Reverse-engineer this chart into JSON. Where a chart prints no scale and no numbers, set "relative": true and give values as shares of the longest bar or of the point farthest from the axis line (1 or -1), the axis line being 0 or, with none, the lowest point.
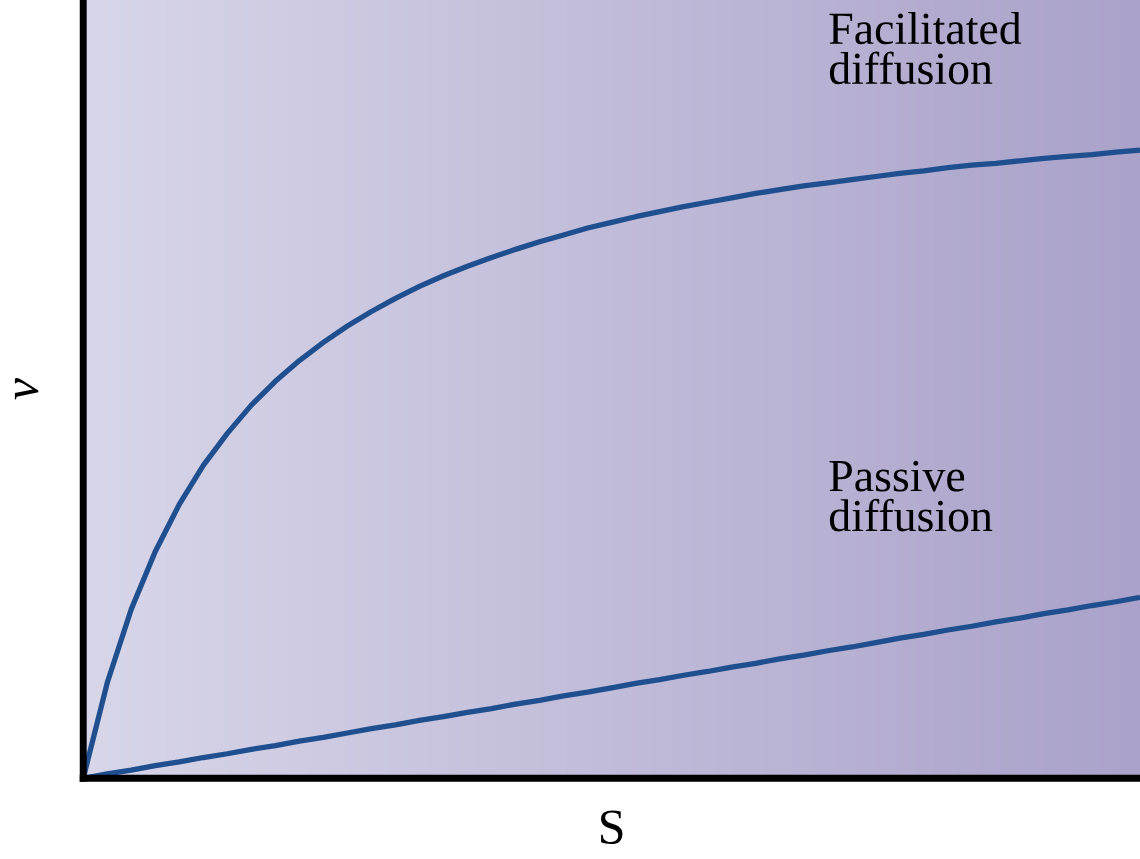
{
  "chart_data": {
    "type": "line",
    "relative": true,
    "xlabel": "S",
    "ylabel": "v",
    "tick_labels": false,
    "grid": false,
    "legend": false,
    "marker": "none",
    "line_style": "solid",
    "categories": [
      null,
      null,
      null,
      null,
      null,
      null,
      null,
      null,
      null,
      null,
      null,
      null,
      null,
      null,
      null,
      null,
      null,
      null,
      null,
      null,
      null,
      null,
      null,
      null,
      null,
      null,
      null,
      null,
      null,
      null,
      null,
      null,
      null,
      null,
      null,
      null,
      null,
      null,
      null,
      null,
      null,
      null,
      null,
      null,
      null
    ],
    "series": [
      {
        "name": "Facilitated diffusion",
        "color": "#1f4f8f",
        "values": [
          0,
          0.152,
          0.269,
          0.361,
          0.436,
          0.498,
          0.549,
          0.594,
          0.632,
          0.665,
          0.694,
          0.72,
          0.743,
          0.764,
          0.783,
          0.8,
          0.815,
          0.829,
          0.842,
          0.854,
          0.865,
          0.876,
          0.885,
          0.894,
          0.902,
          0.91,
          0.917,
          0.924,
          0.931,
          0.937,
          0.943,
          0.948,
          0.953,
          0.958,
          0.963,
          0.967,
          0.972,
          0.976,
          0.979,
          0.983,
          0.987,
          0.99,
          0.993,
          0.997,
          1.0
        ]
      },
      {
        "name": "Passive diffusion",
        "color": "#1f4f8f",
        "values": [
          0,
          0.007,
          0.013,
          0.02,
          0.026,
          0.033,
          0.039,
          0.046,
          0.052,
          0.059,
          0.065,
          0.072,
          0.079,
          0.085,
          0.092,
          0.098,
          0.105,
          0.111,
          0.118,
          0.124,
          0.131,
          0.137,
          0.144,
          0.151,
          0.157,
          0.164,
          0.17,
          0.177,
          0.183,
          0.19,
          0.196,
          0.203,
          0.209,
          0.216,
          0.223,
          0.229,
          0.236,
          0.242,
          0.249,
          0.255,
          0.262,
          0.268,
          0.275,
          0.281,
          0.288
        ]
      }
    ]
  }
}
